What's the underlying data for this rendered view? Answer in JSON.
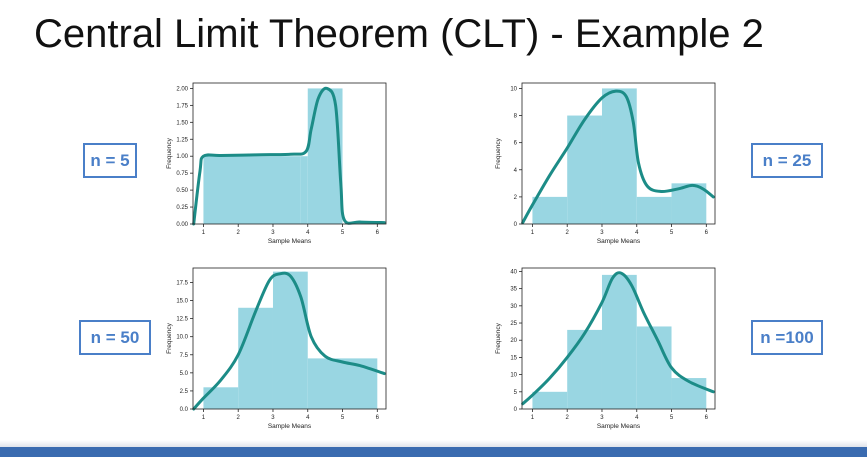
{
  "title": "Central Limit Theorem (CLT) - Example 2",
  "colors": {
    "bar_fill": "#99d6e2",
    "curve": "#1c8c87",
    "label_border": "#4a7fc8",
    "bottom_bar": "#3a6bb0"
  },
  "chart_data": [
    {
      "id": "n5",
      "type": "bar",
      "label": "n = 5",
      "xlabel": "Sample Means",
      "ylabel": "Frequency",
      "xlim": [
        0.7,
        6.25
      ],
      "ylim": [
        0,
        2.08
      ],
      "xticks": [
        "1",
        "2",
        "3",
        "4",
        "5",
        "6"
      ],
      "yticks": [
        "0.00",
        "0.25",
        "0.50",
        "0.75",
        "1.00",
        "1.25",
        "1.50",
        "1.75",
        "2.00"
      ],
      "bins": [
        [
          1,
          3.8,
          1
        ],
        [
          3.8,
          4,
          1
        ],
        [
          4,
          5,
          2
        ]
      ],
      "kde": [
        [
          0.72,
          0
        ],
        [
          0.9,
          0.78
        ],
        [
          1.0,
          1.0
        ],
        [
          1.5,
          1.01
        ],
        [
          2.5,
          1.02
        ],
        [
          3.5,
          1.03
        ],
        [
          3.95,
          1.07
        ],
        [
          4.1,
          1.4
        ],
        [
          4.3,
          1.85
        ],
        [
          4.55,
          2.0
        ],
        [
          4.8,
          1.75
        ],
        [
          4.95,
          0.6
        ],
        [
          5.05,
          0.06
        ],
        [
          5.5,
          0.03
        ],
        [
          6.2,
          0.02
        ]
      ]
    },
    {
      "id": "n25",
      "type": "bar",
      "label": "n = 25",
      "xlabel": "Sample Means",
      "ylabel": "Frequency",
      "xlim": [
        0.7,
        6.25
      ],
      "ylim": [
        0,
        10.4
      ],
      "xticks": [
        "1",
        "2",
        "3",
        "4",
        "5",
        "6"
      ],
      "yticks": [
        "0",
        "2",
        "4",
        "6",
        "8",
        "10"
      ],
      "bins": [
        [
          1,
          2,
          2
        ],
        [
          2,
          3,
          8
        ],
        [
          3,
          4,
          10
        ],
        [
          4,
          5,
          2
        ],
        [
          5,
          6,
          3
        ]
      ],
      "kde": [
        [
          0.72,
          0.1
        ],
        [
          1,
          1.4
        ],
        [
          1.5,
          3.6
        ],
        [
          2,
          5.6
        ],
        [
          2.5,
          7.7
        ],
        [
          3,
          9.3
        ],
        [
          3.4,
          9.8
        ],
        [
          3.7,
          9.4
        ],
        [
          3.9,
          7.5
        ],
        [
          4.05,
          4.5
        ],
        [
          4.3,
          2.8
        ],
        [
          4.7,
          2.4
        ],
        [
          5.2,
          2.6
        ],
        [
          5.6,
          2.85
        ],
        [
          5.9,
          2.6
        ],
        [
          6.2,
          2.0
        ]
      ]
    },
    {
      "id": "n50",
      "type": "bar",
      "label": "n = 50",
      "xlabel": "Sample Means",
      "ylabel": "Frequency",
      "xlim": [
        0.7,
        6.25
      ],
      "ylim": [
        0,
        19.5
      ],
      "xticks": [
        "1",
        "2",
        "3",
        "4",
        "5",
        "6"
      ],
      "yticks": [
        "0.0",
        "2.5",
        "5.0",
        "7.5",
        "10.0",
        "12.5",
        "15.0",
        "17.5"
      ],
      "bins": [
        [
          1,
          2,
          3
        ],
        [
          2,
          3,
          14
        ],
        [
          3,
          4,
          19
        ],
        [
          4,
          6,
          7
        ]
      ],
      "kde": [
        [
          0.72,
          0
        ],
        [
          1,
          1.5
        ],
        [
          1.5,
          4
        ],
        [
          2,
          7.5
        ],
        [
          2.5,
          13.5
        ],
        [
          2.9,
          17.8
        ],
        [
          3.2,
          18.7
        ],
        [
          3.5,
          18.4
        ],
        [
          3.8,
          15.5
        ],
        [
          4.1,
          10
        ],
        [
          4.5,
          7.3
        ],
        [
          5,
          6.5
        ],
        [
          5.5,
          6
        ],
        [
          6.2,
          4.9
        ]
      ]
    },
    {
      "id": "n100",
      "type": "bar",
      "label": "n =100",
      "xlabel": "Sample Means",
      "ylabel": "Frequency",
      "xlim": [
        0.7,
        6.25
      ],
      "ylim": [
        0,
        41
      ],
      "xticks": [
        "1",
        "2",
        "3",
        "4",
        "5",
        "6"
      ],
      "yticks": [
        "0",
        "5",
        "10",
        "15",
        "20",
        "25",
        "30",
        "35",
        "40"
      ],
      "bins": [
        [
          1,
          2,
          5
        ],
        [
          2,
          3,
          23
        ],
        [
          3,
          4,
          39
        ],
        [
          4,
          5,
          24
        ],
        [
          5,
          6,
          9
        ]
      ],
      "kde": [
        [
          0.72,
          1.5
        ],
        [
          1,
          4
        ],
        [
          1.5,
          9
        ],
        [
          2,
          15
        ],
        [
          2.5,
          22
        ],
        [
          3,
          31
        ],
        [
          3.3,
          38
        ],
        [
          3.55,
          39.5
        ],
        [
          3.85,
          36
        ],
        [
          4.2,
          28
        ],
        [
          4.6,
          20
        ],
        [
          5,
          12
        ],
        [
          5.5,
          8
        ],
        [
          6.2,
          5
        ]
      ]
    }
  ]
}
